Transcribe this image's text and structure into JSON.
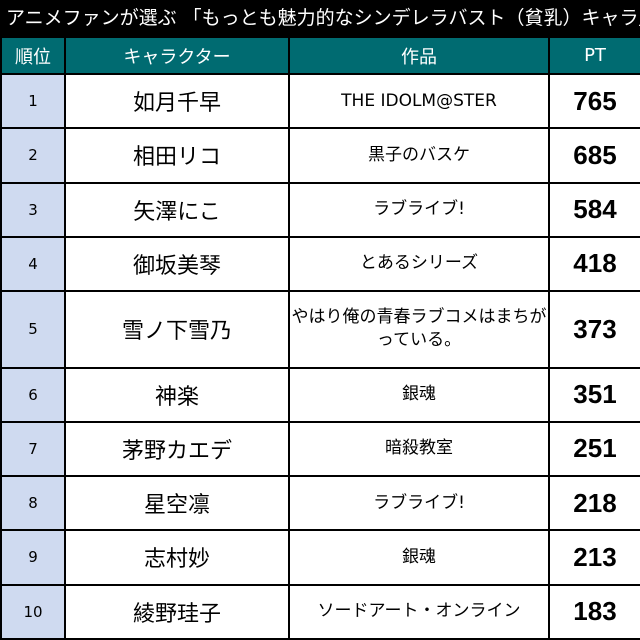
{
  "title": "アニメファンが選ぶ 「もっとも魅力的なシンデレラバスト（貧乳）キャラ」",
  "headers": {
    "rank": "順位",
    "character": "キャラクター",
    "work": "作品",
    "pt": "PT"
  },
  "rows": [
    {
      "rank": "1",
      "name": "如月千早",
      "work": "THE IDOLM@STER",
      "pt": "765"
    },
    {
      "rank": "2",
      "name": "相田リコ",
      "work": "黒子のバスケ",
      "pt": "685"
    },
    {
      "rank": "3",
      "name": "矢澤にこ",
      "work": "ラブライブ!",
      "pt": "584"
    },
    {
      "rank": "4",
      "name": "御坂美琴",
      "work": "とあるシリーズ",
      "pt": "418"
    },
    {
      "rank": "5",
      "name": "雪ノ下雪乃",
      "work": "やはり俺の青春ラブコメはまちがっている。",
      "pt": "373"
    },
    {
      "rank": "6",
      "name": "神楽",
      "work": "銀魂",
      "pt": "351"
    },
    {
      "rank": "7",
      "name": "茅野カエデ",
      "work": "暗殺教室",
      "pt": "251"
    },
    {
      "rank": "8",
      "name": "星空凛",
      "work": "ラブライブ!",
      "pt": "218"
    },
    {
      "rank": "9",
      "name": "志村妙",
      "work": "銀魂",
      "pt": "213"
    },
    {
      "rank": "10",
      "name": "綾野珪子",
      "work": "ソードアート・オンライン",
      "pt": "183"
    }
  ],
  "colors": {
    "title_bg": "#000000",
    "header_bg": "#006b71",
    "rank_cell_bg": "#cfdaf0"
  }
}
